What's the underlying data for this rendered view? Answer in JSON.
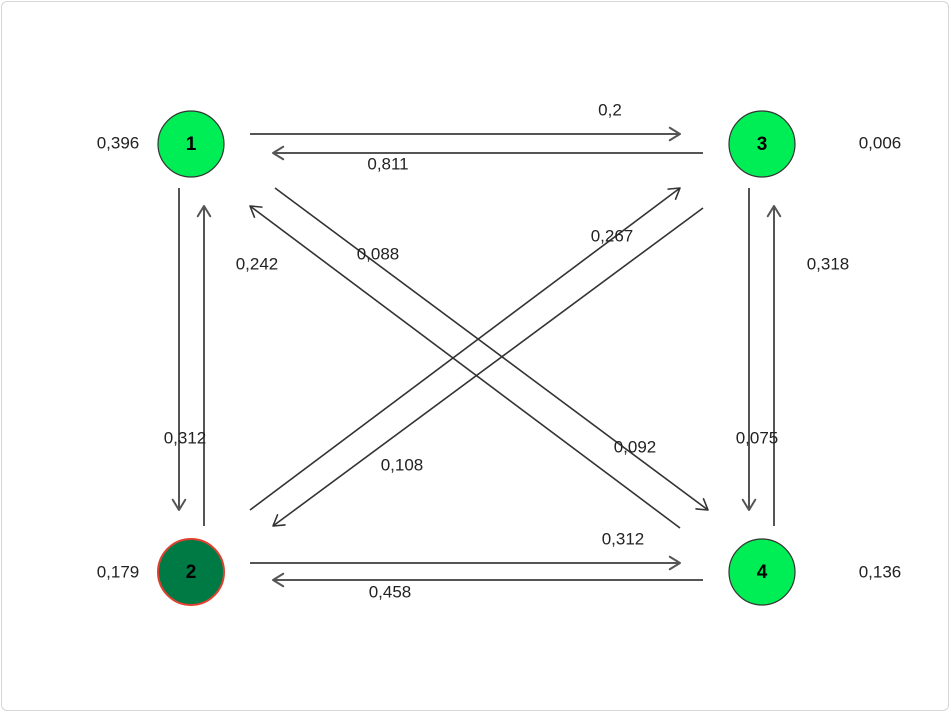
{
  "colors": {
    "node_default": "#00ee55",
    "node_selected": "#007a45",
    "node_selected_border": "#e04030",
    "node_border": "#333333",
    "edge": "#555555"
  },
  "nodes": [
    {
      "id": "1",
      "label": "1",
      "value": "0,396",
      "selected": false
    },
    {
      "id": "2",
      "label": "2",
      "value": "0,179",
      "selected": true
    },
    {
      "id": "3",
      "label": "3",
      "value": "0,006",
      "selected": false
    },
    {
      "id": "4",
      "label": "4",
      "value": "0,136",
      "selected": false
    }
  ],
  "edges": [
    {
      "from": "1",
      "to": "3",
      "weight": "0,2"
    },
    {
      "from": "3",
      "to": "1",
      "weight": "0,811"
    },
    {
      "from": "2",
      "to": "4",
      "weight": "0,312"
    },
    {
      "from": "4",
      "to": "2",
      "weight": "0,458"
    },
    {
      "from": "1",
      "to": "2",
      "weight": "0,312"
    },
    {
      "from": "2",
      "to": "1",
      "weight": "0,242"
    },
    {
      "from": "3",
      "to": "4",
      "weight": "0,075"
    },
    {
      "from": "4",
      "to": "3",
      "weight": "0,318"
    },
    {
      "from": "1",
      "to": "4",
      "weight": "0,092"
    },
    {
      "from": "4",
      "to": "1",
      "weight": "0,088"
    },
    {
      "from": "2",
      "to": "3",
      "weight": "0,267"
    },
    {
      "from": "3",
      "to": "2",
      "weight": "0,108"
    }
  ]
}
